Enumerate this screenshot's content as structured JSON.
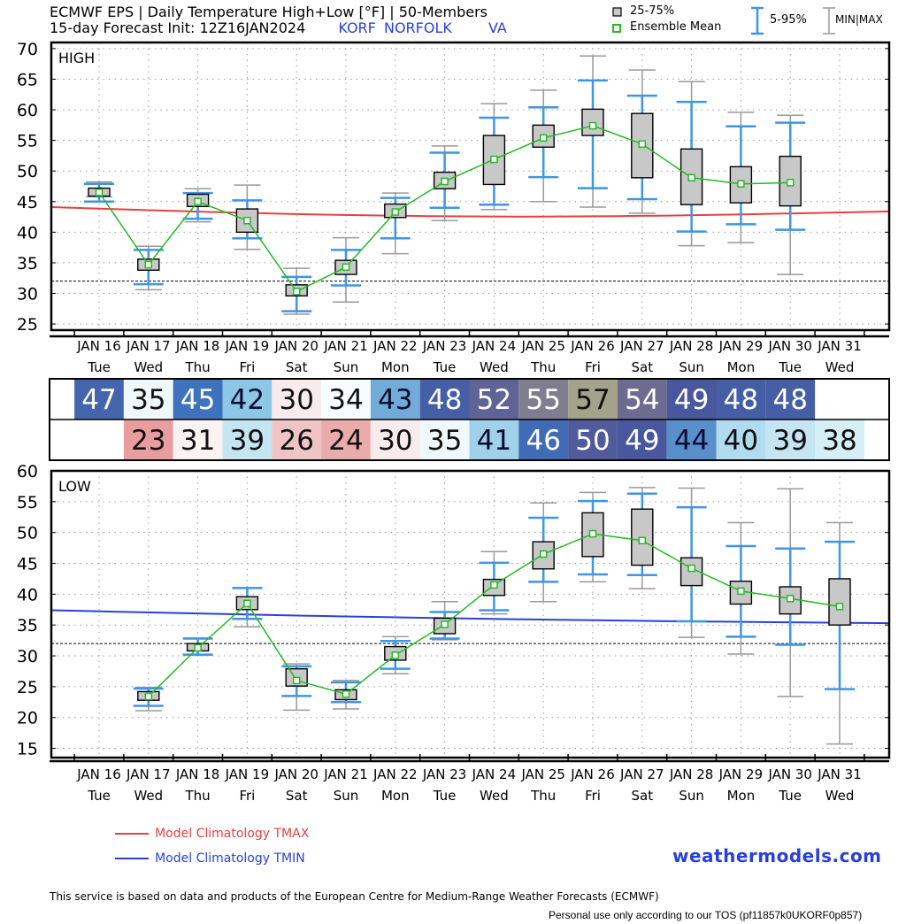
{
  "header": {
    "title_line1": "ECMWF EPS | Daily Temperature High+Low [°F] | 50-Members",
    "title_line2": "15-day Forecast Init: 12Z16JAN2024",
    "station_id": "KORF",
    "station_name": "NORFOLK",
    "state": "VA"
  },
  "legend": {
    "box": "25-75%",
    "mean": "Ensemble Mean",
    "whisker": "5-95%",
    "minmax": "MIN|MAX"
  },
  "colors": {
    "box_fill": "#c8c8c8",
    "mean": "#22bb22",
    "whisker": "#3f95e6",
    "minmax": "#999999",
    "clim_tmax": "#e84040",
    "clim_tmin": "#2a3fd8",
    "brand": "#2a3fd8"
  },
  "chart_data": [
    {
      "type": "box",
      "panel_label": "HIGH",
      "categories": [
        "JAN 16",
        "JAN 17",
        "JAN 18",
        "JAN 19",
        "JAN 20",
        "JAN 21",
        "JAN 22",
        "JAN 23",
        "JAN 24",
        "JAN 25",
        "JAN 26",
        "JAN 27",
        "JAN 28",
        "JAN 29",
        "JAN 30",
        "JAN 31"
      ],
      "weekdays": [
        "Tue",
        "Wed",
        "Thu",
        "Fri",
        "Sat",
        "Sun",
        "Mon",
        "Tue",
        "Wed",
        "Thu",
        "Fri",
        "Sat",
        "Sun",
        "Mon",
        "Tue",
        "Wed"
      ],
      "yticks": [
        25,
        30,
        35,
        40,
        45,
        50,
        55,
        60,
        65,
        70
      ],
      "ylim": [
        24,
        71
      ],
      "grid": true,
      "reference_line": 32,
      "min": [
        45.8,
        30.6,
        41.7,
        37.2,
        26.6,
        28.6,
        36.5,
        41.9,
        43.7,
        45.0,
        44.1,
        43.1,
        37.8,
        38.3,
        33.1,
        null
      ],
      "p5": [
        45.0,
        31.5,
        42.2,
        39.0,
        27.1,
        31.3,
        39.0,
        44.0,
        44.5,
        49.0,
        47.2,
        45.4,
        40.1,
        41.3,
        40.4,
        null
      ],
      "q25": [
        45.9,
        33.8,
        44.2,
        40.0,
        29.6,
        33.1,
        42.4,
        47.1,
        47.8,
        53.9,
        55.8,
        48.9,
        44.5,
        44.8,
        44.3,
        null
      ],
      "q75": [
        47.2,
        35.6,
        46.2,
        43.8,
        31.4,
        35.4,
        44.6,
        49.8,
        55.8,
        57.5,
        60.1,
        59.4,
        53.6,
        50.7,
        52.4,
        null
      ],
      "p95": [
        47.9,
        37.1,
        46.4,
        45.2,
        32.7,
        37.1,
        45.6,
        53.0,
        58.7,
        60.4,
        64.8,
        62.3,
        61.3,
        57.3,
        57.9,
        null
      ],
      "max": [
        48.2,
        37.7,
        47.1,
        47.7,
        34.1,
        39.1,
        46.4,
        54.1,
        61.0,
        63.2,
        68.8,
        66.5,
        64.6,
        59.6,
        59.1,
        null
      ],
      "mean": [
        46.5,
        34.7,
        45.0,
        41.9,
        30.3,
        34.3,
        43.3,
        48.3,
        51.9,
        55.4,
        57.4,
        54.4,
        48.9,
        47.9,
        48.1,
        null
      ],
      "climatology": {
        "name": "Model Climatology TMAX",
        "start": 44.1,
        "end": 43.4,
        "trough": 42.5
      },
      "daily_values": [
        "47",
        "35",
        "45",
        "42",
        "30",
        "34",
        "43",
        "48",
        "52",
        "55",
        "57",
        "54",
        "49",
        "48",
        "48",
        ""
      ]
    },
    {
      "type": "box",
      "panel_label": "LOW",
      "categories": [
        "JAN 16",
        "JAN 17",
        "JAN 18",
        "JAN 19",
        "JAN 20",
        "JAN 21",
        "JAN 22",
        "JAN 23",
        "JAN 24",
        "JAN 25",
        "JAN 26",
        "JAN 27",
        "JAN 28",
        "JAN 29",
        "JAN 30",
        "JAN 31"
      ],
      "weekdays": [
        "Tue",
        "Wed",
        "Thu",
        "Fri",
        "Sat",
        "Sun",
        "Mon",
        "Tue",
        "Wed",
        "Thu",
        "Fri",
        "Sat",
        "Sun",
        "Mon",
        "Tue",
        "Wed"
      ],
      "yticks": [
        15,
        20,
        25,
        30,
        35,
        40,
        45,
        50,
        55,
        60
      ],
      "ylim": [
        13.5,
        60
      ],
      "grid": true,
      "reference_line": 32,
      "min": [
        null,
        21.1,
        30.1,
        34.7,
        21.2,
        21.4,
        27.1,
        32.6,
        36.8,
        38.8,
        42.0,
        40.9,
        33.0,
        30.3,
        23.4,
        15.7
      ],
      "p5": [
        null,
        21.9,
        30.2,
        36.0,
        23.5,
        22.5,
        27.9,
        32.8,
        37.4,
        42.0,
        43.2,
        43.1,
        35.6,
        33.1,
        31.8,
        24.6
      ],
      "q25": [
        null,
        22.8,
        30.8,
        37.5,
        25.1,
        22.9,
        29.3,
        33.6,
        39.8,
        44.1,
        46.1,
        44.7,
        41.4,
        38.4,
        36.8,
        35.0
      ],
      "q75": [
        null,
        24.2,
        32.0,
        39.6,
        27.9,
        24.5,
        31.5,
        36.1,
        42.4,
        48.5,
        53.2,
        53.8,
        45.9,
        42.1,
        41.2,
        42.5
      ],
      "p95": [
        null,
        24.7,
        32.8,
        41.0,
        28.3,
        25.7,
        32.4,
        37.1,
        45.1,
        52.4,
        55.1,
        56.3,
        54.1,
        47.8,
        47.4,
        48.5
      ],
      "max": [
        null,
        24.9,
        32.9,
        41.0,
        28.7,
        26.0,
        33.1,
        38.8,
        46.9,
        54.8,
        56.5,
        57.3,
        57.2,
        51.6,
        57.1,
        51.6
      ],
      "mean": [
        null,
        23.4,
        31.3,
        38.5,
        26.0,
        23.8,
        30.1,
        35.1,
        41.5,
        46.5,
        49.8,
        48.7,
        44.2,
        40.5,
        39.3,
        38.0
      ],
      "climatology": {
        "name": "Model Climatology TMIN",
        "start": 37.4,
        "end": 35.3,
        "trough": 35.0
      },
      "daily_values": [
        "",
        "23",
        "31",
        "39",
        "26",
        "24",
        "30",
        "35",
        "41",
        "46",
        "50",
        "49",
        "44",
        "40",
        "39",
        "38"
      ]
    }
  ],
  "footer": {
    "brand": "weathermodels.com",
    "disclaimer": "This service is based on data and products of the European Centre for Medium-Range Weather Forecasts (ECMWF)",
    "tos": "Personal use only according to our TOS (pf11857k0UKORF0p857)"
  }
}
